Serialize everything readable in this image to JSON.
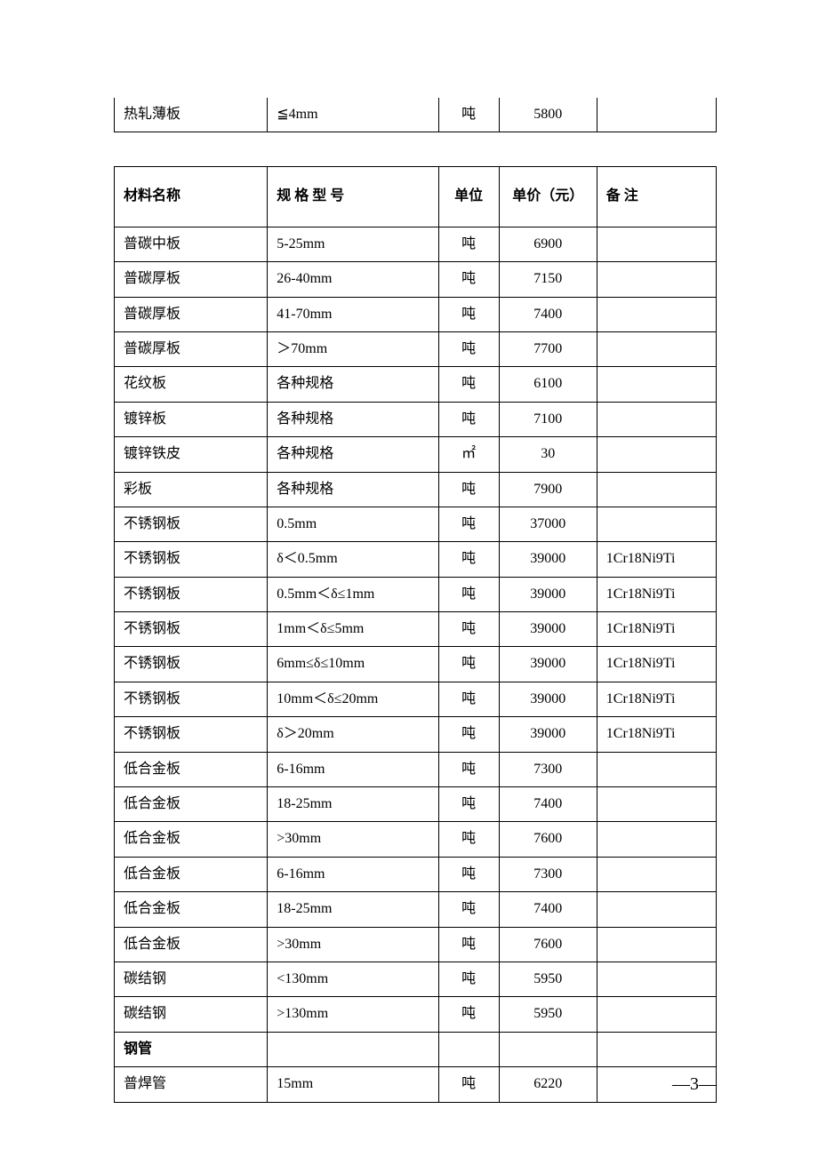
{
  "top_fragment": {
    "name": "热轧薄板",
    "spec": "≦4mm",
    "unit": "吨",
    "price": "5800",
    "remark": ""
  },
  "main_table": {
    "header": {
      "name": "材料名称",
      "spec": "规 格 型 号",
      "unit": "单位",
      "price": "单价（元）",
      "remark": "备 注"
    },
    "rows": [
      {
        "type": "data",
        "name": "普碳中板",
        "spec": "5-25mm",
        "unit": "吨",
        "price": "6900",
        "remark": ""
      },
      {
        "type": "data",
        "name": "普碳厚板",
        "spec": "26-40mm",
        "unit": "吨",
        "price": "7150",
        "remark": ""
      },
      {
        "type": "data",
        "name": "普碳厚板",
        "spec": "41-70mm",
        "unit": "吨",
        "price": "7400",
        "remark": ""
      },
      {
        "type": "data",
        "name": "普碳厚板",
        "spec": "＞70mm",
        "unit": "吨",
        "price": "7700",
        "remark": ""
      },
      {
        "type": "data",
        "name": "花纹板",
        "spec": "各种规格",
        "unit": "吨",
        "price": "6100",
        "remark": ""
      },
      {
        "type": "data",
        "name": "镀锌板",
        "spec": "各种规格",
        "unit": "吨",
        "price": "7100",
        "remark": ""
      },
      {
        "type": "data",
        "name": "镀锌铁皮",
        "spec": "各种规格",
        "unit": "㎡",
        "price": "30",
        "remark": ""
      },
      {
        "type": "data",
        "name": "彩板",
        "spec": "各种规格",
        "unit": "吨",
        "price": "7900",
        "remark": ""
      },
      {
        "type": "data",
        "name": "不锈钢板",
        "spec": "0.5mm",
        "unit": "吨",
        "price": "37000",
        "remark": ""
      },
      {
        "type": "data",
        "name": "不锈钢板",
        "spec": "δ＜0.5mm",
        "unit": "吨",
        "price": "39000",
        "remark": "1Cr18Ni9Ti"
      },
      {
        "type": "data",
        "name": "不锈钢板",
        "spec": "0.5mm＜δ≤1mm",
        "unit": "吨",
        "price": "39000",
        "remark": "1Cr18Ni9Ti"
      },
      {
        "type": "data",
        "name": "不锈钢板",
        "spec": "1mm＜δ≤5mm",
        "unit": "吨",
        "price": "39000",
        "remark": "1Cr18Ni9Ti"
      },
      {
        "type": "data",
        "name": "不锈钢板",
        "spec": "6mm≤δ≤10mm",
        "unit": "吨",
        "price": "39000",
        "remark": "1Cr18Ni9Ti"
      },
      {
        "type": "data",
        "name": "不锈钢板",
        "spec": "10mm＜δ≤20mm",
        "unit": "吨",
        "price": "39000",
        "remark": "1Cr18Ni9Ti"
      },
      {
        "type": "data",
        "name": "不锈钢板",
        "spec": "δ＞20mm",
        "unit": "吨",
        "price": "39000",
        "remark": "1Cr18Ni9Ti"
      },
      {
        "type": "data",
        "name": "低合金板",
        "spec": "6-16mm",
        "unit": "吨",
        "price": "7300",
        "remark": ""
      },
      {
        "type": "data",
        "name": "低合金板",
        "spec": "18-25mm",
        "unit": "吨",
        "price": "7400",
        "remark": ""
      },
      {
        "type": "data",
        "name": "低合金板",
        "spec": ">30mm",
        "unit": "吨",
        "price": "7600",
        "remark": ""
      },
      {
        "type": "data",
        "name": "低合金板",
        "spec": "6-16mm",
        "unit": "吨",
        "price": "7300",
        "remark": ""
      },
      {
        "type": "data",
        "name": "低合金板",
        "spec": "18-25mm",
        "unit": "吨",
        "price": "7400",
        "remark": ""
      },
      {
        "type": "data",
        "name": "低合金板",
        "spec": ">30mm",
        "unit": "吨",
        "price": "7600",
        "remark": ""
      },
      {
        "type": "data",
        "name": "碳结钢",
        "spec": "<130mm",
        "unit": "吨",
        "price": "5950",
        "remark": ""
      },
      {
        "type": "data",
        "name": "碳结钢",
        "spec": ">130mm",
        "unit": "吨",
        "price": "5950",
        "remark": ""
      },
      {
        "type": "section",
        "name": "钢管",
        "spec": "",
        "unit": "",
        "price": "",
        "remark": ""
      },
      {
        "type": "data",
        "name": "普焊管",
        "spec": "15mm",
        "unit": "吨",
        "price": "6220",
        "remark": ""
      }
    ]
  },
  "page_number": "―3―"
}
